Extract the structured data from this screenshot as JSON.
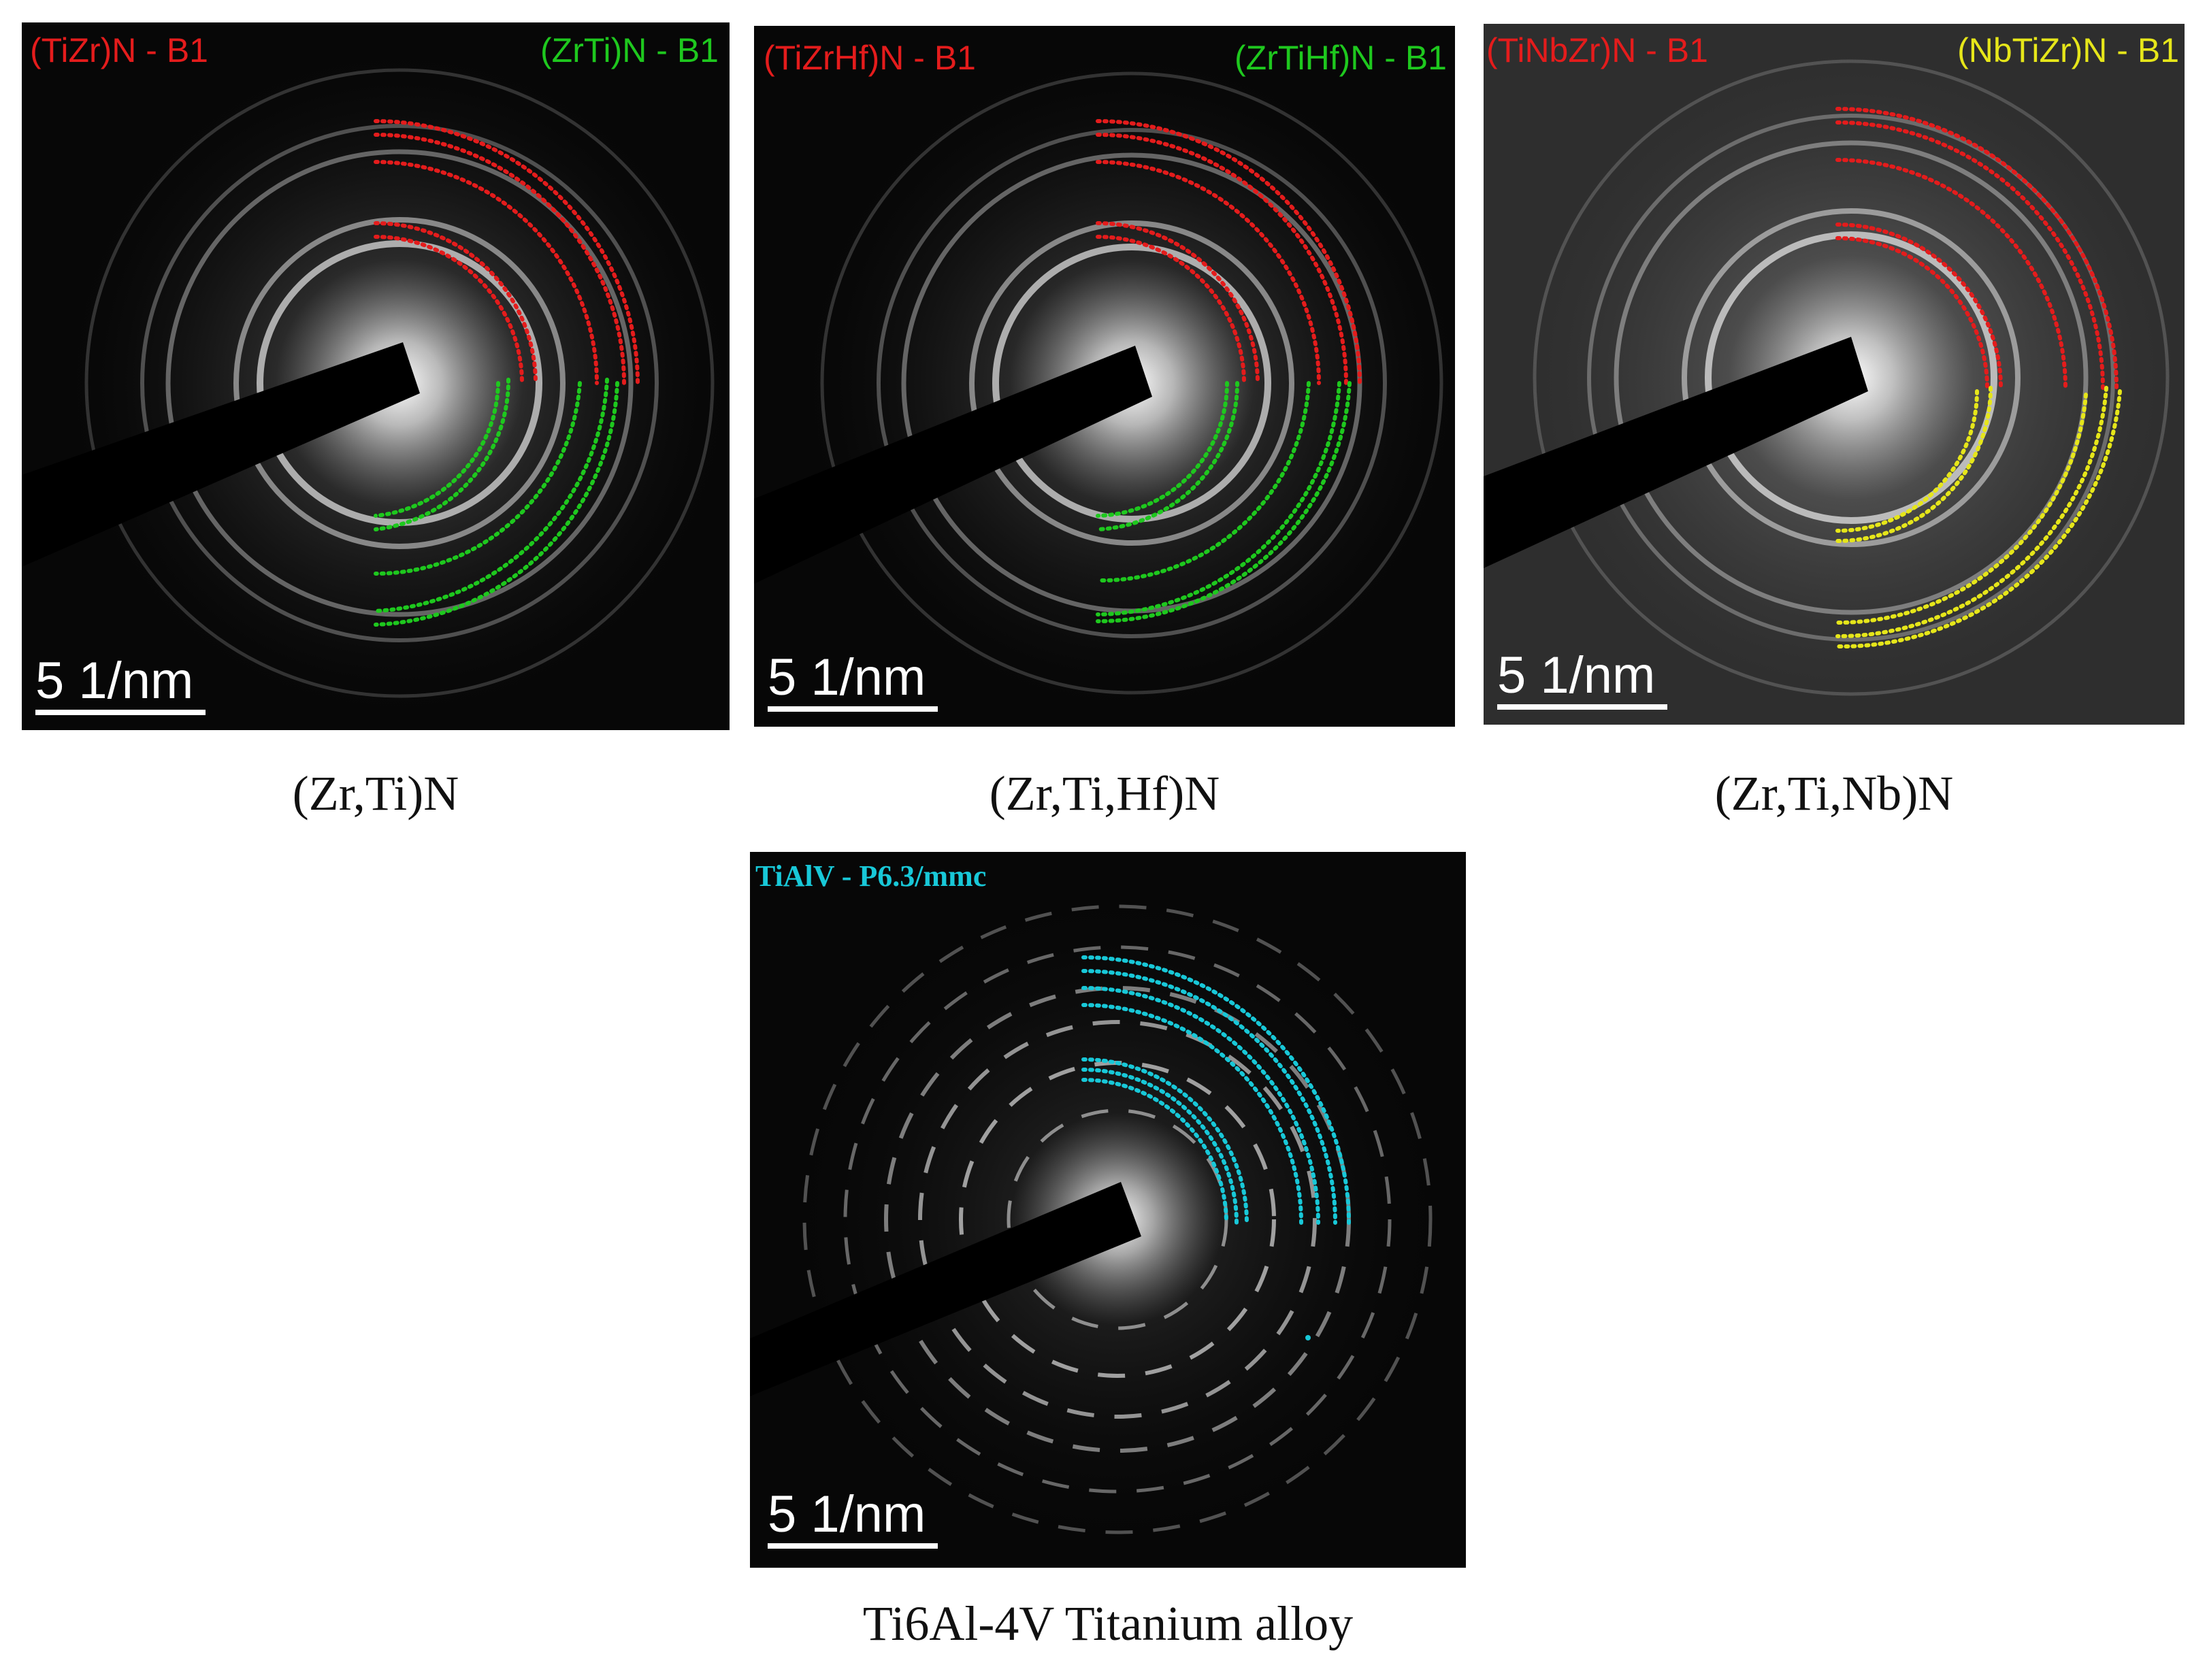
{
  "panels": [
    {
      "caption": "(Zr,Ti)N",
      "label_left": "(TiZr)N - B1",
      "label_right": "(ZrTi)N - B1",
      "scale": "5 1/nm",
      "color_left": "#e41c1c",
      "color_right": "#1ec81e"
    },
    {
      "caption": "(Zr,Ti,Hf)N",
      "label_left": "(TiZrHf)N - B1",
      "label_right": "(ZrTiHf)N - B1",
      "scale": "5 1/nm",
      "color_left": "#e41c1c",
      "color_right": "#1ec81e"
    },
    {
      "caption": "(Zr,Ti,Nb)N",
      "label_left": "(TiNbZr)N - B1",
      "label_right": "(NbTiZr)N - B1",
      "scale": "5 1/nm",
      "color_left": "#e41c1c",
      "color_right": "#e6e61a"
    },
    {
      "caption": "Ti6Al-4V Titanium alloy",
      "label_left": "TiAlV - P6.3/mmc",
      "scale": "5 1/nm",
      "color_left": "#18c8d8"
    }
  ]
}
